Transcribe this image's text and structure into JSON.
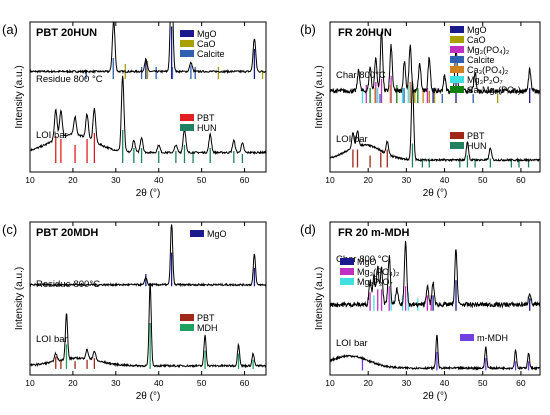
{
  "chart_data": [
    {
      "type": "line",
      "panel_label": "(a)",
      "title": "PBT 20HUN",
      "xlabel": "2θ (°)",
      "ylabel": "Intensity (a.u.)",
      "xlim": [
        10,
        65
      ],
      "xticks": [
        "10",
        "20",
        "30",
        "40",
        "50",
        "60"
      ],
      "series": [
        {
          "name": "Residue 800 °C",
          "offset": 0.62,
          "baseline": 0.1,
          "peaks": [
            [
              29.5,
              0.34,
              0.3
            ],
            [
              37.0,
              0.08,
              0.3
            ],
            [
              43.0,
              0.62,
              0.3
            ],
            [
              47.5,
              0.06,
              0.3
            ],
            [
              62.3,
              0.22,
              0.3
            ]
          ],
          "marks": [
            {
              "name": "MgO",
              "color": "#1a1a8c",
              "positions": [
                37.0,
                43.0,
                62.3
              ],
              "heights": [
                0.12,
                0.35,
                0.2
              ]
            },
            {
              "name": "CaO",
              "color": "#a8a000",
              "positions": [
                32.2,
                37.4,
                53.9,
                64.2
              ],
              "heights": [
                0.1,
                0.12,
                0.08,
                0.06
              ]
            },
            {
              "name": "Calcite",
              "color": "#2f5fb0",
              "positions": [
                23.1,
                29.4,
                36.0,
                39.4,
                43.2,
                47.5,
                48.5
              ],
              "heights": [
                0.06,
                0.14,
                0.08,
                0.08,
                0.08,
                0.09,
                0.08
              ]
            }
          ]
        },
        {
          "name": "LOI bar",
          "offset": 0.06,
          "baseline": 0.14,
          "hump": [
            20,
            0.12,
            5
          ],
          "peaks": [
            [
              16.0,
              0.2,
              0.3
            ],
            [
              17.2,
              0.18,
              0.3
            ],
            [
              20.5,
              0.12,
              0.3
            ],
            [
              23.3,
              0.16,
              0.3
            ],
            [
              25.0,
              0.22,
              0.3
            ],
            [
              31.6,
              0.5,
              0.3
            ],
            [
              34.2,
              0.08,
              0.3
            ],
            [
              36.0,
              0.1,
              0.3
            ],
            [
              40.0,
              0.05,
              0.3
            ],
            [
              44.0,
              0.05,
              0.3
            ],
            [
              46.0,
              0.16,
              0.3
            ],
            [
              52.0,
              0.12,
              0.3
            ],
            [
              57.5,
              0.08,
              0.3
            ],
            [
              59.5,
              0.06,
              0.3
            ]
          ],
          "marks": [
            {
              "name": "PBT",
              "color": "#e02020",
              "positions": [
                16.0,
                17.2,
                20.5,
                23.3,
                25.0
              ],
              "heights": [
                0.18,
                0.16,
                0.12,
                0.16,
                0.2
              ]
            },
            {
              "name": "HUN",
              "color": "#208060",
              "positions": [
                31.6,
                34.2,
                36.0,
                40.0,
                44.0,
                46.0,
                48.0,
                52.0,
                57.5,
                59.5
              ],
              "heights": [
                0.22,
                0.1,
                0.1,
                0.08,
                0.08,
                0.12,
                0.08,
                0.1,
                0.08,
                0.06
              ]
            }
          ]
        }
      ],
      "legends": [
        {
          "items": [
            "MgO",
            "CaO",
            "Calcite"
          ],
          "colors": [
            "#1a1a8c",
            "#a8a000",
            "#2f5fb0"
          ]
        },
        {
          "items": [
            "PBT",
            "HUN"
          ],
          "colors": [
            "#e02020",
            "#208060"
          ]
        }
      ]
    },
    {
      "type": "line",
      "panel_label": "(b)",
      "title": "FR 20HUN",
      "xlabel": "2θ (°)",
      "ylabel": "Intensity (a.u.)",
      "xlim": [
        10,
        65
      ],
      "xticks": [
        "10",
        "20",
        "30",
        "40",
        "50",
        "60"
      ],
      "series": [
        {
          "name": "Char 800°C",
          "offset": 0.46,
          "baseline": 0.16,
          "noise": 0.03,
          "peaks": [
            [
              17.5,
              0.14,
              0.3
            ],
            [
              20.5,
              0.16,
              0.3
            ],
            [
              22.0,
              0.22,
              0.3
            ],
            [
              23.5,
              0.4,
              0.3
            ],
            [
              26.0,
              0.3,
              0.3
            ],
            [
              29.5,
              0.2,
              0.3
            ],
            [
              31.0,
              0.3,
              0.3
            ],
            [
              33.5,
              0.18,
              0.3
            ],
            [
              36.0,
              0.22,
              0.3
            ],
            [
              40.0,
              0.1,
              0.3
            ],
            [
              43.0,
              0.28,
              0.3
            ],
            [
              48.0,
              0.12,
              0.3
            ],
            [
              62.3,
              0.14,
              0.3
            ]
          ],
          "marks": [
            {
              "name": "MgO",
              "color": "#1a1a8c",
              "positions": [
                37.0,
                43.0,
                62.3
              ],
              "heights": [
                0.1,
                0.16,
                0.1
              ]
            },
            {
              "name": "CaO",
              "color": "#a8a000",
              "positions": [
                32.2,
                37.4,
                53.9
              ],
              "heights": [
                0.08,
                0.1,
                0.06
              ]
            },
            {
              "name": "Mg₃(PO₄)₂",
              "color": "#c030c0",
              "positions": [
                19.5,
                22.0,
                23.5,
                26.0,
                31.0,
                35.5
              ],
              "heights": [
                0.12,
                0.14,
                0.16,
                0.18,
                0.14,
                0.1
              ]
            },
            {
              "name": "Calcite",
              "color": "#2f5fb0",
              "positions": [
                23.1,
                29.4,
                36.0,
                39.4,
                47.5
              ],
              "heights": [
                0.06,
                0.1,
                0.08,
                0.06,
                0.06
              ]
            },
            {
              "name": "Ca₃(PO₄)₂",
              "color": "#d08020",
              "positions": [
                21.8,
                25.8,
                31.0,
                34.4,
                36.0
              ],
              "heights": [
                0.1,
                0.12,
                0.14,
                0.1,
                0.08
              ]
            },
            {
              "name": "Mg₃P₂O₇",
              "color": "#40e0e0",
              "positions": [
                18.5,
                22.5,
                29.0,
                30.5
              ],
              "heights": [
                0.1,
                0.1,
                0.1,
                0.12
              ]
            },
            {
              "name": "Ca₂Mg₃(PO₄)₆",
              "color": "#108010",
              "positions": [
                20.5,
                27.5,
                33.0
              ],
              "heights": [
                0.1,
                0.12,
                0.1
              ]
            }
          ]
        },
        {
          "name": "LOI bar",
          "offset": 0.03,
          "baseline": 0.1,
          "hump": [
            19,
            0.1,
            4.5
          ],
          "peaks": [
            [
              16.0,
              0.1,
              0.3
            ],
            [
              17.2,
              0.1,
              0.3
            ],
            [
              25.0,
              0.08,
              0.3
            ],
            [
              31.6,
              0.52,
              0.3
            ],
            [
              46.0,
              0.12,
              0.3
            ],
            [
              52.0,
              0.08,
              0.3
            ]
          ],
          "marks": [
            {
              "name": "PBT",
              "color": "#a02818",
              "positions": [
                16.0,
                17.2,
                20.5,
                23.3,
                25.0
              ],
              "heights": [
                0.12,
                0.12,
                0.08,
                0.1,
                0.12
              ]
            },
            {
              "name": "HUN",
              "color": "#208060",
              "positions": [
                31.6,
                34.2,
                36.0,
                44.0,
                46.0,
                48.0,
                52.0,
                57.5,
                59.5,
                62.0
              ],
              "heights": [
                0.16,
                0.06,
                0.06,
                0.06,
                0.08,
                0.06,
                0.06,
                0.06,
                0.05,
                0.05
              ]
            }
          ]
        }
      ],
      "legends": [
        {
          "items": [
            "MgO",
            "CaO",
            "Mg₃(PO₄)₂",
            "Calcite",
            "Ca₃(PO₄)₂",
            "Mg₃P₂O₇",
            "Ca₂Mg₃(PO₄)₆"
          ],
          "colors": [
            "#1a1a8c",
            "#a8a000",
            "#c030c0",
            "#2f5fb0",
            "#d08020",
            "#40e0e0",
            "#108010"
          ]
        },
        {
          "items": [
            "PBT",
            "HUN"
          ],
          "colors": [
            "#a02818",
            "#208060"
          ]
        }
      ]
    },
    {
      "type": "line",
      "panel_label": "(c)",
      "title": "PBT 20MDH",
      "xlabel": "2θ (°)",
      "ylabel": "Intensity (a.u.)",
      "xlim": [
        10,
        65
      ],
      "xticks": [
        "10",
        "20",
        "30",
        "40",
        "50",
        "60"
      ],
      "series": [
        {
          "name": "Residue 800°C",
          "offset": 0.58,
          "baseline": 0.02,
          "peaks": [
            [
              37.0,
              0.05,
              0.25
            ],
            [
              43.0,
              0.4,
              0.25
            ],
            [
              62.3,
              0.2,
              0.25
            ]
          ],
          "marks": [
            {
              "name": "MgO",
              "color": "#1a1a8c",
              "positions": [
                37.0,
                43.0,
                62.3
              ],
              "heights": [
                0.08,
                0.22,
                0.12
              ]
            }
          ]
        },
        {
          "name": "LOI bar",
          "offset": 0.04,
          "baseline": 0.04,
          "hump": [
            21,
            0.05,
            5
          ],
          "peaks": [
            [
              16.0,
              0.05,
              0.3
            ],
            [
              18.5,
              0.3,
              0.25
            ],
            [
              23.3,
              0.06,
              0.3
            ],
            [
              25.0,
              0.06,
              0.3
            ],
            [
              38.0,
              0.54,
              0.25
            ],
            [
              50.8,
              0.2,
              0.25
            ],
            [
              58.6,
              0.14,
              0.25
            ],
            [
              62.0,
              0.08,
              0.25
            ]
          ],
          "marks": [
            {
              "name": "PBT",
              "color": "#a02818",
              "positions": [
                16.0,
                17.2,
                20.5,
                23.3,
                25.0
              ],
              "heights": [
                0.08,
                0.06,
                0.05,
                0.06,
                0.07
              ]
            },
            {
              "name": "MDH",
              "color": "#20a060",
              "positions": [
                18.5,
                38.0,
                50.8,
                58.6,
                62.0
              ],
              "heights": [
                0.16,
                0.3,
                0.12,
                0.1,
                0.06
              ]
            }
          ]
        }
      ],
      "legends": [
        {
          "items": [
            "MgO"
          ],
          "colors": [
            "#1a1a8c"
          ]
        },
        {
          "items": [
            "PBT",
            "MDH"
          ],
          "colors": [
            "#a02818",
            "#20a060"
          ]
        }
      ]
    },
    {
      "type": "line",
      "panel_label": "(d)",
      "title": "FR 20 m-MDH",
      "xlabel": "2θ (°)",
      "ylabel": "Intensity (a.u.)",
      "xlim": [
        10,
        65
      ],
      "xticks": [
        "10",
        "20",
        "30",
        "40",
        "50",
        "60"
      ],
      "series": [
        {
          "name": "Char 800 °C",
          "offset": 0.42,
          "baseline": 0.08,
          "noise": 0.03,
          "peaks": [
            [
              20.5,
              0.16,
              0.3
            ],
            [
              21.5,
              0.2,
              0.3
            ],
            [
              22.5,
              0.26,
              0.3
            ],
            [
              23.5,
              0.24,
              0.3
            ],
            [
              25.5,
              0.32,
              0.3
            ],
            [
              27.5,
              0.1,
              0.3
            ],
            [
              29.8,
              0.42,
              0.3
            ],
            [
              35.5,
              0.12,
              0.3
            ],
            [
              37.0,
              0.14,
              0.3
            ],
            [
              43.0,
              0.36,
              0.3
            ],
            [
              62.3,
              0.08,
              0.3
            ]
          ],
          "marks": [
            {
              "name": "MgO",
              "color": "#1a1a8c",
              "positions": [
                37.0,
                43.0,
                62.3
              ],
              "heights": [
                0.1,
                0.2,
                0.08
              ]
            },
            {
              "name": "Mg₃(PO₄)₂",
              "color": "#c030c0",
              "positions": [
                20.5,
                22.5,
                23.5,
                25.5,
                29.8,
                35.5,
                36.5
              ],
              "heights": [
                0.12,
                0.14,
                0.14,
                0.16,
                0.16,
                0.1,
                0.1
              ]
            },
            {
              "name": "Mg₂P₂O₇",
              "color": "#40e0e0",
              "positions": [
                21.5,
                26.0,
                29.0,
                30.5,
                33.0
              ],
              "heights": [
                0.1,
                0.12,
                0.1,
                0.12,
                0.08
              ]
            }
          ]
        },
        {
          "name": "LOI bar",
          "offset": 0.03,
          "baseline": 0.03,
          "hump": [
            15,
            0.08,
            5
          ],
          "peaks": [
            [
              38.0,
              0.22,
              0.25
            ],
            [
              50.8,
              0.14,
              0.25
            ],
            [
              58.6,
              0.12,
              0.25
            ],
            [
              62.0,
              0.1,
              0.25
            ]
          ],
          "marks": [
            {
              "name": "m-MDH",
              "color": "#7040e0",
              "positions": [
                18.5,
                38.0,
                50.8,
                58.6,
                62.0
              ],
              "heights": [
                0.08,
                0.12,
                0.08,
                0.06,
                0.06
              ]
            }
          ]
        }
      ],
      "legends": [
        {
          "items": [
            "MgO",
            "Mg₃(PO₄)₂",
            "Mg₂P₂O₇"
          ],
          "colors": [
            "#1a1a8c",
            "#c030c0",
            "#40e0e0"
          ]
        },
        {
          "items": [
            "m-MDH"
          ],
          "colors": [
            "#7040e0"
          ]
        }
      ]
    }
  ]
}
